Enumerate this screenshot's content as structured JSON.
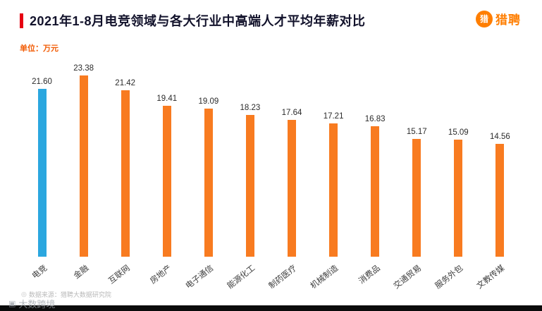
{
  "header": {
    "title": "2021年1-8月电竞领域与各大行业中高端人才平均年薪对比",
    "unit_label": "单位：万元",
    "logo_mark": "猎",
    "logo_text": "猎聘"
  },
  "footer": {
    "source": "数据来源：猎聘大数据研究院",
    "source_icon": "◎",
    "watermark": "大数跨境",
    "watermark_icon": "▣"
  },
  "colors": {
    "accent_red": "#e60012",
    "bar_orange": "#f87b20",
    "bar_blue": "#2ba7df",
    "title_dark": "#12122b",
    "unit_orange": "#f25c05",
    "logo_orange": "#ff7e00"
  },
  "chart_data": {
    "type": "bar",
    "title": "2021年1-8月电竞领域与各大行业中高端人才平均年薪对比",
    "xlabel": "",
    "ylabel": "万元",
    "ylim": [
      0,
      25
    ],
    "grid": false,
    "legend": "none",
    "value_labels_shown": true,
    "categories": [
      "电竞",
      "金融",
      "互联网",
      "房地产",
      "电子通信",
      "能源化工",
      "制药医疗",
      "机械制造",
      "消费品",
      "交通贸易",
      "服务外包",
      "文教传媒"
    ],
    "values": [
      21.6,
      23.38,
      21.42,
      19.41,
      19.09,
      18.23,
      17.64,
      17.21,
      16.83,
      15.17,
      15.09,
      14.56
    ],
    "value_labels": [
      "21.60",
      "23.38",
      "21.42",
      "19.41",
      "19.09",
      "18.23",
      "17.64",
      "17.21",
      "16.83",
      "15.17",
      "15.09",
      "14.56"
    ],
    "bar_colors": [
      "#2ba7df",
      "#f87b20",
      "#f87b20",
      "#f87b20",
      "#f87b20",
      "#f87b20",
      "#f87b20",
      "#f87b20",
      "#f87b20",
      "#f87b20",
      "#f87b20",
      "#f87b20"
    ]
  }
}
